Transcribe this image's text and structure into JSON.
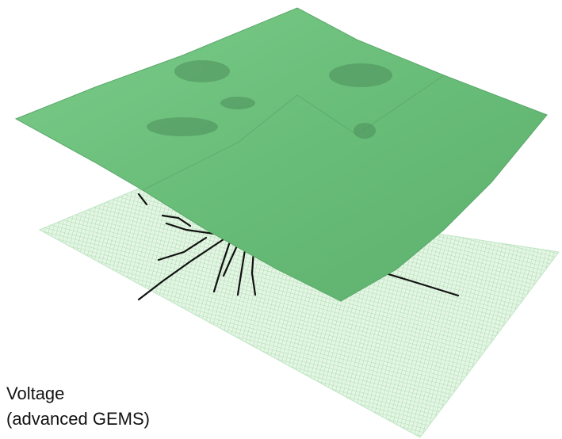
{
  "caption": {
    "lines": [
      "Voltage",
      "(advanced GEMS)"
    ]
  }
}
